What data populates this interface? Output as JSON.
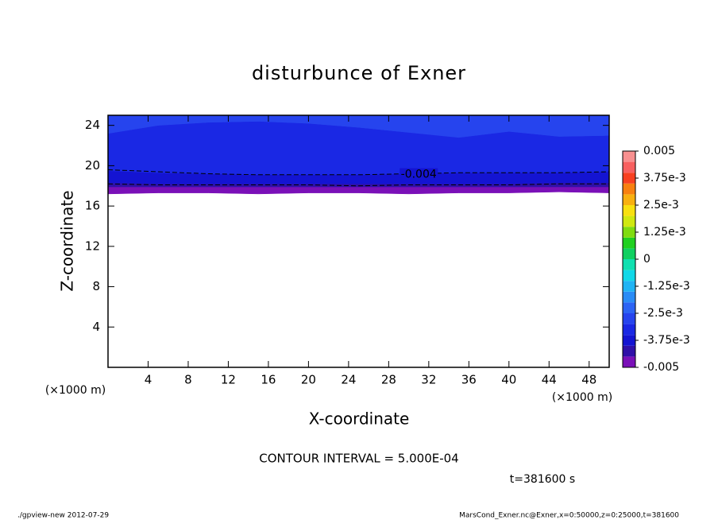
{
  "chart_data": {
    "type": "contour",
    "title": "disturbunce of Exner",
    "x_label": "X-coordinate",
    "y_label": "Z-coordinate",
    "x_unit_label": "(×1000 m)",
    "y_unit_label": "(×1000 m)",
    "xlim": [
      0,
      50
    ],
    "ylim": [
      0,
      25
    ],
    "xticks": [
      4,
      8,
      12,
      16,
      20,
      24,
      28,
      32,
      36,
      40,
      44,
      48
    ],
    "yticks": [
      4,
      8,
      12,
      16,
      20,
      24
    ],
    "regions": [
      {
        "color": "#7a10b8",
        "x": [
          0,
          5,
          10,
          15,
          20,
          25,
          30,
          35,
          40,
          45,
          50
        ],
        "bottom": [
          17.2,
          17.3,
          17.3,
          17.2,
          17.3,
          17.3,
          17.2,
          17.3,
          17.3,
          17.4,
          17.3
        ],
        "top": [
          17.9,
          17.9,
          17.9,
          17.9,
          17.9,
          17.9,
          17.9,
          17.9,
          17.9,
          17.9,
          17.9
        ]
      },
      {
        "color": "#3010a8",
        "x": [
          0,
          5,
          10,
          15,
          20,
          25,
          30,
          35,
          40,
          45,
          50
        ],
        "bottom": [
          17.9,
          17.9,
          17.9,
          17.9,
          17.9,
          17.9,
          17.9,
          17.9,
          17.9,
          17.9,
          17.9
        ],
        "top": [
          18.3,
          18.2,
          18.2,
          18.2,
          18.2,
          18.2,
          18.2,
          18.2,
          18.2,
          18.3,
          18.3
        ]
      },
      {
        "color": "#1414d2",
        "x": [
          0,
          5,
          10,
          15,
          20,
          25,
          30,
          35,
          40,
          45,
          50
        ],
        "bottom": [
          18.3,
          18.2,
          18.2,
          18.2,
          18.2,
          18.2,
          18.2,
          18.2,
          18.2,
          18.3,
          18.3
        ],
        "top": [
          19.5,
          19.3,
          19.2,
          19.1,
          19.1,
          19.1,
          19.2,
          19.3,
          19.3,
          19.3,
          19.4
        ]
      },
      {
        "color": "#1a28e4",
        "x": [
          0,
          5,
          10,
          15,
          20,
          25,
          30,
          35,
          40,
          45,
          50
        ],
        "bottom": [
          19.5,
          19.3,
          19.2,
          19.1,
          19.1,
          19.1,
          19.2,
          19.3,
          19.3,
          19.3,
          19.4
        ],
        "top": [
          23.2,
          24.0,
          24.3,
          24.4,
          24.2,
          23.8,
          23.3,
          22.8,
          23.4,
          22.9,
          23.0
        ]
      },
      {
        "color": "#2644ee",
        "x": [
          0,
          5,
          10,
          15,
          20,
          25,
          30,
          35,
          40,
          45,
          50
        ],
        "bottom": [
          23.2,
          24.0,
          24.3,
          24.4,
          24.2,
          23.8,
          23.3,
          22.8,
          23.4,
          22.9,
          23.0
        ],
        "top": [
          25,
          25,
          25,
          25,
          25,
          25,
          25,
          25,
          25,
          25,
          25
        ]
      }
    ],
    "contour_lines": [
      {
        "level": -0.0045,
        "x": [
          0,
          5,
          10,
          15,
          20,
          25,
          30,
          35,
          40,
          45,
          50
        ],
        "z": [
          18.2,
          18.1,
          18.1,
          18.1,
          18.1,
          18.0,
          18.1,
          18.1,
          18.1,
          18.2,
          18.2
        ]
      },
      {
        "level": -0.004,
        "label_x": 31,
        "x": [
          0,
          5,
          10,
          15,
          20,
          25,
          30,
          35,
          40,
          45,
          50
        ],
        "z": [
          19.6,
          19.4,
          19.2,
          19.1,
          19.1,
          19.1,
          19.2,
          19.3,
          19.3,
          19.3,
          19.4
        ]
      }
    ],
    "colorbar": {
      "levels": [
        -0.005,
        -0.0045,
        -0.004,
        -0.0035,
        -0.003,
        -0.0025,
        -0.002,
        -0.0015,
        -0.001,
        -0.0005,
        0,
        0.0005,
        0.001,
        0.0015,
        0.002,
        0.0025,
        0.003,
        0.0035,
        0.004,
        0.0045,
        0.005
      ],
      "colors": [
        "#7a10b8",
        "#3010a8",
        "#1414d2",
        "#1a28e4",
        "#2644ee",
        "#2c64f4",
        "#2a8cf6",
        "#20b4f4",
        "#10d8e8",
        "#10e0b0",
        "#10d060",
        "#20d020",
        "#80dc10",
        "#d0e810",
        "#f8e010",
        "#f8b010",
        "#f88010",
        "#f84020",
        "#f86060",
        "#f89090"
      ],
      "ticks": [
        -0.005,
        {
          "value": -0.00375,
          "label": "-3.75e-3"
        },
        {
          "value": -0.0025,
          "label": "-2.5e-3"
        },
        {
          "value": -0.00125,
          "label": "-1.25e-3"
        },
        0,
        {
          "value": 0.00125,
          "label": "1.25e-3"
        },
        {
          "value": 0.0025,
          "label": "2.5e-3"
        },
        {
          "value": 0.00375,
          "label": "3.75e-3"
        },
        0.005
      ]
    },
    "contour_interval_text": "CONTOUR INTERVAL = 5.000E-04",
    "time_text": "t=381600 s",
    "footer_left": "./gpview-new  2012-07-29",
    "footer_right": "MarsCond_Exner.nc@Exner,x=0:50000,z=0:25000,t=381600"
  }
}
